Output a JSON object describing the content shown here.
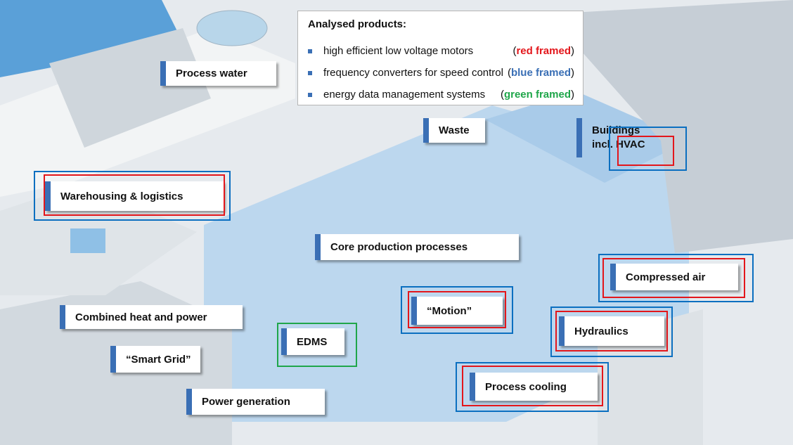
{
  "legend": {
    "title": "Analysed products:",
    "items": [
      {
        "text": "high efficient low voltage motors",
        "open": "(",
        "note": "red framed",
        "close": ")",
        "color": "#e3161b"
      },
      {
        "text": "frequency converters for speed control",
        "open": "(",
        "note": "blue framed",
        "close": ")",
        "color": "#3a6fb5"
      },
      {
        "text": "energy data management systems",
        "open": "(",
        "note": "green framed",
        "close": ")",
        "color": "#1fa64a"
      }
    ]
  },
  "labels": [
    {
      "text": "Process water",
      "frames": []
    },
    {
      "text": "Waste",
      "frames": []
    },
    {
      "text": "Buildings incl. HVAC",
      "frames": [
        "#0b6fc0",
        "#e3161b"
      ]
    },
    {
      "text": "Warehousing & logistics",
      "frames": [
        "#0b6fc0",
        "#e3161b"
      ]
    },
    {
      "text": "Core production processes",
      "frames": []
    },
    {
      "text": "Compressed air",
      "frames": [
        "#0b6fc0",
        "#e3161b"
      ]
    },
    {
      "text": "“Motion”",
      "frames": [
        "#0b6fc0",
        "#e3161b"
      ]
    },
    {
      "text": "Hydraulics",
      "frames": [
        "#0b6fc0",
        "#e3161b"
      ]
    },
    {
      "text": "Combined heat and power",
      "frames": []
    },
    {
      "text": "EDMS",
      "frames": [
        "#1fa64a"
      ]
    },
    {
      "text": "“Smart Grid”",
      "frames": []
    },
    {
      "text": "Process cooling",
      "frames": [
        "#0b6fc0",
        "#e3161b"
      ]
    },
    {
      "text": "Power generation",
      "frames": []
    }
  ]
}
